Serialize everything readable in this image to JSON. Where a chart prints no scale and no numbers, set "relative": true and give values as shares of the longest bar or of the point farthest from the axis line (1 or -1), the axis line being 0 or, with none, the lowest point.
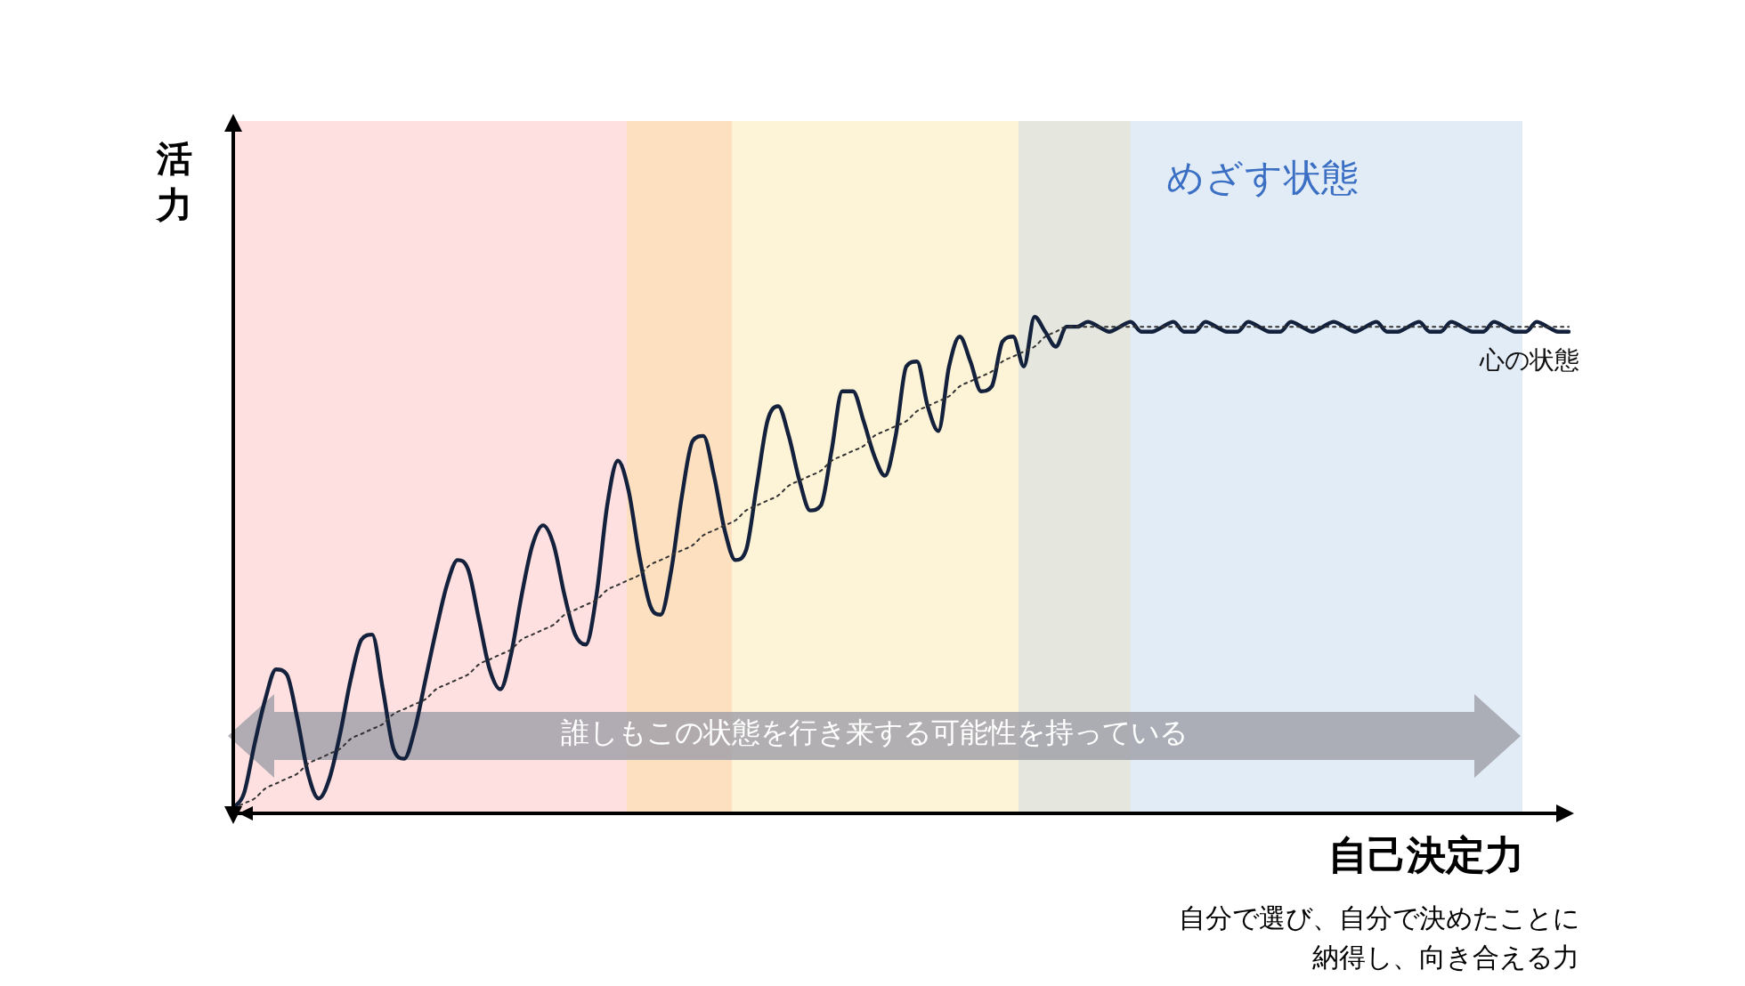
{
  "chart_data": {
    "type": "line",
    "relative": true,
    "marker": "none",
    "ylabel": "活力",
    "xlabel": "自己決定力",
    "annotations": [
      "めざす状態",
      "誰しもこの状態を行き来する可能性を持っている",
      "自分で選び、自分で決めたことに納得し、向き合える力"
    ],
    "categories": [
      null,
      null,
      null,
      null,
      null,
      null,
      null,
      null,
      null,
      null,
      null,
      null,
      null,
      null,
      null,
      null,
      null,
      null,
      null,
      null,
      null,
      null,
      null,
      null,
      null,
      null,
      null,
      null,
      null,
      null,
      null,
      null,
      null,
      null,
      null,
      null,
      null,
      null,
      null,
      null,
      null,
      null,
      null,
      null,
      null,
      null,
      null,
      null,
      null,
      null,
      null,
      null,
      null,
      null,
      null,
      null,
      null,
      null,
      null,
      null,
      null,
      null,
      null,
      null,
      null,
      null,
      null,
      null,
      null,
      null,
      null,
      null,
      null,
      null,
      null,
      null,
      null,
      null,
      null,
      null,
      null,
      null,
      null,
      null,
      null,
      null,
      null,
      null,
      null,
      null,
      null,
      null,
      null,
      null,
      null,
      null,
      null,
      null,
      null,
      null,
      null,
      null,
      null,
      null,
      null,
      null,
      null,
      null,
      null,
      null,
      null,
      null,
      null,
      null,
      null,
      null,
      null,
      null,
      null,
      null,
      null,
      null,
      null,
      null,
      null,
      null
    ],
    "series": [
      {
        "name": "心の状態",
        "type": "line",
        "color": "#14213d",
        "line_style": "solid",
        "values": [
          0.01,
          0.04,
          0.14,
          0.23,
          0.29,
          0.28,
          0.19,
          0.08,
          0.03,
          0.07,
          0.16,
          0.27,
          0.35,
          0.36,
          0.25,
          0.13,
          0.11,
          0.17,
          0.27,
          0.37,
          0.46,
          0.51,
          0.49,
          0.39,
          0.29,
          0.25,
          0.32,
          0.44,
          0.54,
          0.58,
          0.54,
          0.44,
          0.36,
          0.34,
          0.44,
          0.62,
          0.71,
          0.65,
          0.52,
          0.42,
          0.4,
          0.49,
          0.64,
          0.75,
          0.76,
          0.68,
          0.57,
          0.51,
          0.53,
          0.66,
          0.79,
          0.82,
          0.76,
          0.67,
          0.61,
          0.62,
          0.73,
          0.85,
          0.85,
          0.79,
          0.72,
          0.68,
          0.76,
          0.9,
          0.91,
          0.82,
          0.77,
          0.9,
          0.96,
          0.91,
          0.85,
          0.86,
          0.95,
          0.96,
          0.9,
          1,
          0.97,
          0.94,
          0.98,
          0.98,
          0.99,
          0.98,
          0.97,
          0.98,
          0.99,
          0.97,
          0.97,
          0.98,
          0.99,
          0.97,
          0.97,
          0.99,
          0.98,
          0.97,
          0.97,
          0.99,
          0.98,
          0.97,
          0.97,
          0.99,
          0.98,
          0.97,
          0.98,
          0.99,
          0.98,
          0.97,
          0.98,
          0.99,
          0.97,
          0.97,
          0.98,
          0.99,
          0.97,
          0.97,
          0.99,
          0.98,
          0.97,
          0.97,
          0.99,
          0.98,
          0.97,
          0.97,
          0.99,
          0.98,
          0.97,
          0.97
        ]
      },
      {
        "type": "line",
        "color": "#333333",
        "line_style": "dotted",
        "values": [
          0.01,
          0.02,
          0.03,
          0.05,
          0.06,
          0.07,
          0.08,
          0.1,
          0.11,
          0.12,
          0.13,
          0.15,
          0.16,
          0.17,
          0.18,
          0.2,
          0.21,
          0.22,
          0.23,
          0.25,
          0.26,
          0.27,
          0.28,
          0.3,
          0.31,
          0.32,
          0.33,
          0.35,
          0.36,
          0.37,
          0.38,
          0.4,
          0.41,
          0.42,
          0.43,
          0.45,
          0.46,
          0.47,
          0.48,
          0.5,
          0.51,
          0.52,
          0.53,
          0.54,
          0.56,
          0.57,
          0.58,
          0.59,
          0.61,
          0.62,
          0.63,
          0.64,
          0.66,
          0.67,
          0.68,
          0.69,
          0.71,
          0.72,
          0.73,
          0.74,
          0.76,
          0.77,
          0.78,
          0.79,
          0.81,
          0.82,
          0.83,
          0.84,
          0.86,
          0.87,
          0.88,
          0.89,
          0.91,
          0.92,
          0.93,
          0.94,
          0.96,
          0.97,
          0.98,
          0.98,
          0.98,
          0.98,
          0.98,
          0.98,
          0.98,
          0.98,
          0.98,
          0.98,
          0.98,
          0.98,
          0.98,
          0.98,
          0.98,
          0.98,
          0.98,
          0.98,
          0.98,
          0.98,
          0.98,
          0.98,
          0.98,
          0.98,
          0.98,
          0.98,
          0.98,
          0.98,
          0.98,
          0.98,
          0.98,
          0.98,
          0.98,
          0.98,
          0.98,
          0.98,
          0.98,
          0.98,
          0.98,
          0.98,
          0.98,
          0.98,
          0.98,
          0.98,
          0.98,
          0.98,
          0.98,
          0.98
        ]
      }
    ]
  }
}
